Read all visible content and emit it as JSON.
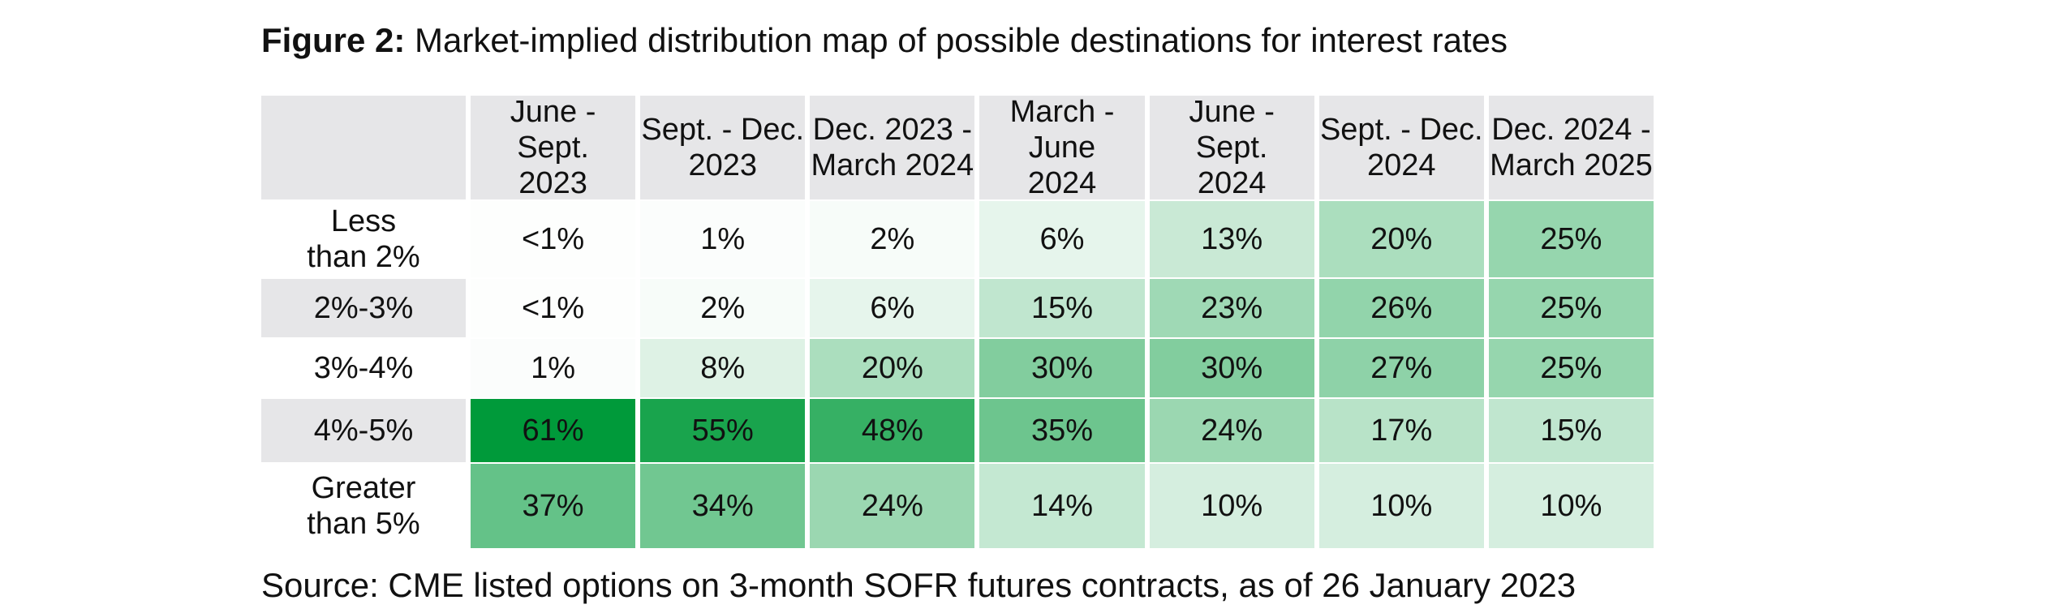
{
  "title": {
    "label": "Figure 2:",
    "text": "Market-implied distribution map of possible destinations for interest rates"
  },
  "source": "Source: CME listed options on 3-month SOFR futures contracts, as of 26 January 2023",
  "colors": {
    "header_bg": "#e6e6e8",
    "low": "#ffffff",
    "high": "#009a3a"
  },
  "chart_data": {
    "type": "heatmap",
    "x": [
      "June - Sept.\n2023",
      "Sept. - Dec.\n2023",
      "Dec. 2023 -\nMarch 2024",
      "March - June\n2024",
      "June - Sept.\n2024",
      "Sept. - Dec.\n2024",
      "Dec. 2024 -\nMarch 2025"
    ],
    "y": [
      "Less\nthan 2%",
      "2%-3%",
      "3%-4%",
      "4%-5%",
      "Greater\nthan 5%"
    ],
    "values": [
      [
        0.5,
        1,
        2,
        6,
        13,
        20,
        25
      ],
      [
        0.5,
        2,
        6,
        15,
        23,
        26,
        25
      ],
      [
        1,
        8,
        20,
        30,
        30,
        27,
        25
      ],
      [
        61,
        55,
        48,
        35,
        24,
        17,
        15
      ],
      [
        37,
        34,
        24,
        14,
        10,
        10,
        10
      ]
    ],
    "labels": [
      [
        "<1%",
        "1%",
        "2%",
        "6%",
        "13%",
        "20%",
        "25%"
      ],
      [
        "<1%",
        "2%",
        "6%",
        "15%",
        "23%",
        "26%",
        "25%"
      ],
      [
        "1%",
        "8%",
        "20%",
        "30%",
        "30%",
        "27%",
        "25%"
      ],
      [
        "61%",
        "55%",
        "48%",
        "35%",
        "24%",
        "17%",
        "15%"
      ],
      [
        "37%",
        "34%",
        "24%",
        "14%",
        "10%",
        "10%",
        "10%"
      ]
    ],
    "shaded_row_labels": [
      false,
      true,
      false,
      true,
      false
    ]
  }
}
